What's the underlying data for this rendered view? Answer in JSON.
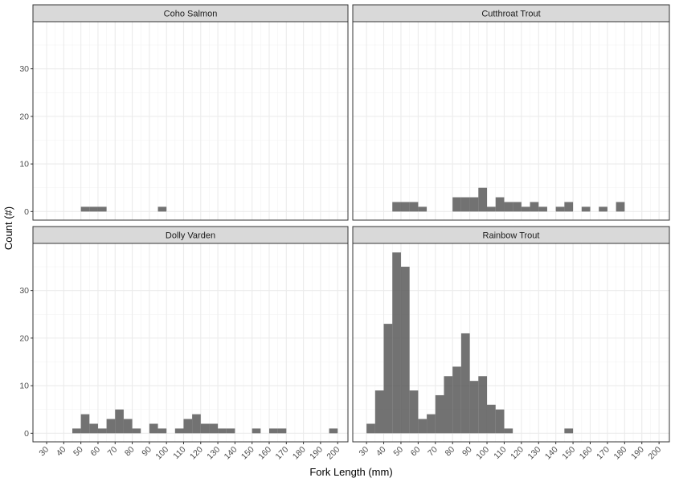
{
  "chart_data": {
    "type": "bar",
    "layout": "facet_wrap 2x2",
    "xlabel": "Fork Length (mm)",
    "ylabel": "Count (#)",
    "bin_width": 5,
    "xlim": [
      22,
      206
    ],
    "ylim": [
      -1.8,
      39.9
    ],
    "x_ticks": [
      30,
      40,
      50,
      60,
      70,
      80,
      90,
      100,
      110,
      120,
      130,
      140,
      150,
      160,
      170,
      180,
      190,
      200
    ],
    "y_ticks": [
      0,
      10,
      20,
      30
    ],
    "grid": true,
    "bar_color": "#595959",
    "strip_fill": "#d9d9d9",
    "panels": [
      {
        "name": "Coho Salmon",
        "bins": [
          {
            "x": 52.5,
            "count": 1
          },
          {
            "x": 57.5,
            "count": 1
          },
          {
            "x": 62.5,
            "count": 1
          },
          {
            "x": 97.5,
            "count": 1
          }
        ]
      },
      {
        "name": "Cutthroat Trout",
        "bins": [
          {
            "x": 47.5,
            "count": 2
          },
          {
            "x": 52.5,
            "count": 2
          },
          {
            "x": 57.5,
            "count": 2
          },
          {
            "x": 62.5,
            "count": 1
          },
          {
            "x": 82.5,
            "count": 3
          },
          {
            "x": 87.5,
            "count": 3
          },
          {
            "x": 92.5,
            "count": 3
          },
          {
            "x": 97.5,
            "count": 5
          },
          {
            "x": 102.5,
            "count": 1
          },
          {
            "x": 107.5,
            "count": 3
          },
          {
            "x": 112.5,
            "count": 2
          },
          {
            "x": 117.5,
            "count": 2
          },
          {
            "x": 122.5,
            "count": 1
          },
          {
            "x": 127.5,
            "count": 2
          },
          {
            "x": 132.5,
            "count": 1
          },
          {
            "x": 142.5,
            "count": 1
          },
          {
            "x": 147.5,
            "count": 2
          },
          {
            "x": 157.5,
            "count": 1
          },
          {
            "x": 167.5,
            "count": 1
          },
          {
            "x": 177.5,
            "count": 2
          }
        ]
      },
      {
        "name": "Dolly Varden",
        "bins": [
          {
            "x": 47.5,
            "count": 1
          },
          {
            "x": 52.5,
            "count": 4
          },
          {
            "x": 57.5,
            "count": 2
          },
          {
            "x": 62.5,
            "count": 1
          },
          {
            "x": 67.5,
            "count": 3
          },
          {
            "x": 72.5,
            "count": 5
          },
          {
            "x": 77.5,
            "count": 3
          },
          {
            "x": 82.5,
            "count": 1
          },
          {
            "x": 92.5,
            "count": 2
          },
          {
            "x": 97.5,
            "count": 1
          },
          {
            "x": 107.5,
            "count": 1
          },
          {
            "x": 112.5,
            "count": 3
          },
          {
            "x": 117.5,
            "count": 4
          },
          {
            "x": 122.5,
            "count": 2
          },
          {
            "x": 127.5,
            "count": 2
          },
          {
            "x": 132.5,
            "count": 1
          },
          {
            "x": 137.5,
            "count": 1
          },
          {
            "x": 152.5,
            "count": 1
          },
          {
            "x": 162.5,
            "count": 1
          },
          {
            "x": 167.5,
            "count": 1
          },
          {
            "x": 197.5,
            "count": 1
          }
        ]
      },
      {
        "name": "Rainbow Trout",
        "bins": [
          {
            "x": 32.5,
            "count": 2
          },
          {
            "x": 37.5,
            "count": 9
          },
          {
            "x": 42.5,
            "count": 23
          },
          {
            "x": 47.5,
            "count": 38
          },
          {
            "x": 52.5,
            "count": 35
          },
          {
            "x": 57.5,
            "count": 9
          },
          {
            "x": 62.5,
            "count": 3
          },
          {
            "x": 67.5,
            "count": 4
          },
          {
            "x": 72.5,
            "count": 8
          },
          {
            "x": 77.5,
            "count": 12
          },
          {
            "x": 82.5,
            "count": 14
          },
          {
            "x": 87.5,
            "count": 21
          },
          {
            "x": 92.5,
            "count": 11
          },
          {
            "x": 97.5,
            "count": 12
          },
          {
            "x": 102.5,
            "count": 6
          },
          {
            "x": 107.5,
            "count": 5
          },
          {
            "x": 112.5,
            "count": 1
          },
          {
            "x": 147.5,
            "count": 1
          }
        ]
      }
    ]
  }
}
